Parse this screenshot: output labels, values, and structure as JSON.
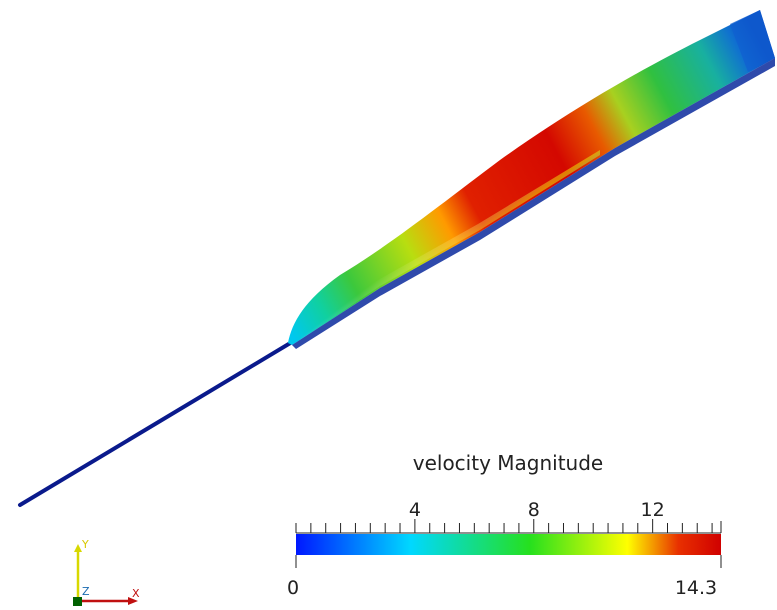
{
  "scalar_bar": {
    "title": "velocity Magnitude",
    "range": [
      0,
      14.3
    ],
    "min_label": "0",
    "max_label": "14.3",
    "tick_labels": [
      {
        "value": 4,
        "text": "4"
      },
      {
        "value": 8,
        "text": "8"
      },
      {
        "value": 12,
        "text": "12"
      }
    ],
    "minor_tick_step": 0.5,
    "colormap": "rainbow-blue-to-red",
    "colors": [
      "#0018ff",
      "#00d8ff",
      "#26e01e",
      "#ffff00",
      "#e03000",
      "#d00000"
    ]
  },
  "axes_triad": {
    "y_label": "Y",
    "z_label": "Z",
    "x_label": "X",
    "colors": {
      "x": "#c01010",
      "y": "#d8d800",
      "z": "#006000"
    }
  },
  "scene": {
    "background": "#ffffff",
    "line_color": "#0a1a8c"
  }
}
